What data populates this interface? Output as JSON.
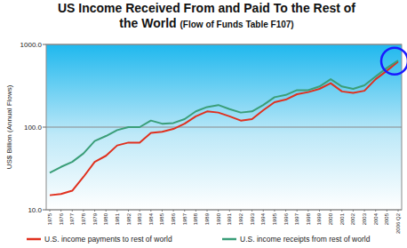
{
  "chart_data": {
    "type": "line",
    "title": "US Income Received From and Paid To the Rest of the World",
    "subtitle": "(Flow of Funds Table F107)",
    "y_label": "US$ Billion (Annual Flows)",
    "categories": [
      "1975",
      "1976",
      "1977",
      "1978",
      "1979",
      "1980",
      "1981",
      "1982",
      "1983",
      "1984",
      "1985",
      "1986",
      "1987",
      "1988",
      "1989",
      "1990",
      "1991",
      "1992",
      "1993",
      "1994",
      "1995",
      "1996",
      "1997",
      "1998",
      "1999",
      "2000",
      "2001",
      "2002",
      "2003",
      "2004",
      "2005",
      "2006 Q2"
    ],
    "series": [
      {
        "name": "U.S. income payments to rest of world",
        "color": "#e0301e",
        "values": [
          15,
          15.5,
          17,
          25,
          38,
          45,
          60,
          65,
          65,
          85,
          88,
          95,
          110,
          135,
          155,
          150,
          135,
          120,
          125,
          160,
          200,
          215,
          250,
          265,
          290,
          340,
          270,
          260,
          275,
          380,
          480,
          620
        ]
      },
      {
        "name": "U.S. income receipts from rest of world",
        "color": "#3a9e78",
        "values": [
          28,
          33,
          38,
          48,
          68,
          78,
          92,
          100,
          100,
          120,
          110,
          112,
          125,
          155,
          175,
          185,
          165,
          150,
          155,
          185,
          230,
          245,
          280,
          280,
          310,
          380,
          310,
          290,
          320,
          410,
          520,
          640
        ]
      }
    ],
    "log": "y",
    "ylim": [
      10,
      1000
    ],
    "yticks": [
      {
        "value": 10,
        "label": "10.0"
      },
      {
        "value": 100,
        "label": "100.0"
      },
      {
        "value": 1000,
        "label": "1000.0"
      }
    ],
    "grid": true,
    "legend": "bottom"
  }
}
